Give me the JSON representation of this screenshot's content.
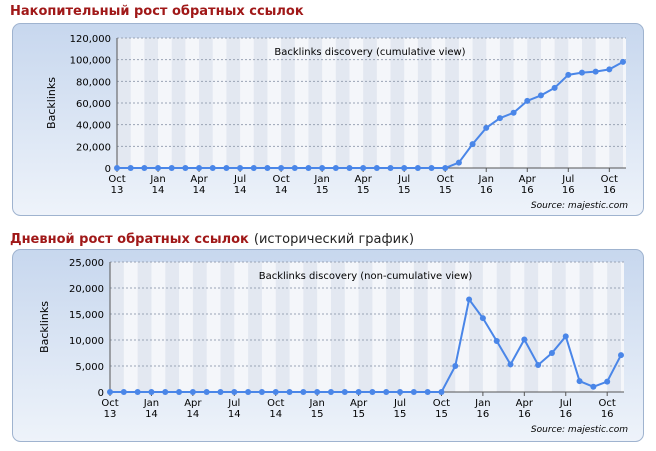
{
  "sections": [
    {
      "heading": "Накопительный рост обратных ссылок"
    },
    {
      "heading": "Дневной рост обратных ссылок",
      "heading_note": "(исторический график)"
    }
  ],
  "chart_data": [
    {
      "type": "line",
      "title": "Backlinks discovery (cumulative view)",
      "y_label": "Backlinks",
      "source": "Source: majestic.com",
      "categories": [
        "Oct 13",
        null,
        null,
        "Jan 14",
        null,
        null,
        "Apr 14",
        null,
        null,
        "Jul 14",
        null,
        null,
        "Oct 14",
        null,
        null,
        "Jan 15",
        null,
        null,
        "Apr 15",
        null,
        null,
        "Jul 15",
        null,
        null,
        "Oct 15",
        null,
        null,
        "Jan 16",
        null,
        null,
        "Apr 16",
        null,
        null,
        "Jul 16",
        null,
        null,
        "Oct 16",
        null
      ],
      "values": [
        0,
        0,
        0,
        0,
        0,
        0,
        0,
        0,
        0,
        0,
        0,
        0,
        0,
        0,
        0,
        0,
        0,
        0,
        0,
        0,
        0,
        0,
        0,
        0,
        0,
        5000,
        22000,
        37000,
        46000,
        51000,
        62000,
        67000,
        74000,
        86000,
        88000,
        89000,
        91000,
        98000
      ],
      "color": "#4a86e8",
      "ylim": [
        0,
        120000
      ],
      "yticks": [
        0,
        {
          "value": 20000,
          "label": "20,000"
        },
        {
          "value": 40000,
          "label": "40,000"
        },
        {
          "value": 60000,
          "label": "60,000"
        },
        {
          "value": 80000,
          "label": "80,000"
        },
        {
          "value": 100000,
          "label": "100,000"
        },
        {
          "value": 120000,
          "label": "120,000"
        }
      ],
      "grid": true
    },
    {
      "type": "line",
      "title": "Backlinks discovery (non-cumulative view)",
      "y_label": "Backlinks",
      "source": "Source: majestic.com",
      "categories": [
        "Oct 13",
        null,
        null,
        "Jan 14",
        null,
        null,
        "Apr 14",
        null,
        null,
        "Jul 14",
        null,
        null,
        "Oct 14",
        null,
        null,
        "Jan 15",
        null,
        null,
        "Apr 15",
        null,
        null,
        "Jul 15",
        null,
        null,
        "Oct 15",
        null,
        null,
        "Jan 16",
        null,
        null,
        "Apr 16",
        null,
        null,
        "Jul 16",
        null,
        null,
        "Oct 16",
        null
      ],
      "values": [
        0,
        0,
        0,
        0,
        0,
        0,
        0,
        0,
        0,
        0,
        0,
        0,
        0,
        0,
        0,
        0,
        0,
        0,
        0,
        0,
        0,
        0,
        0,
        0,
        0,
        5000,
        17800,
        14200,
        9800,
        5300,
        10100,
        5200,
        7500,
        10700,
        2100,
        1000,
        2000,
        7100
      ],
      "color": "#4a86e8",
      "ylim": [
        0,
        25000
      ],
      "yticks": [
        0,
        {
          "value": 5000,
          "label": "5,000"
        },
        {
          "value": 10000,
          "label": "10,000"
        },
        {
          "value": 15000,
          "label": "15,000"
        },
        {
          "value": 20000,
          "label": "20,000"
        },
        {
          "value": 25000,
          "label": "25,000"
        }
      ],
      "grid": true
    }
  ]
}
